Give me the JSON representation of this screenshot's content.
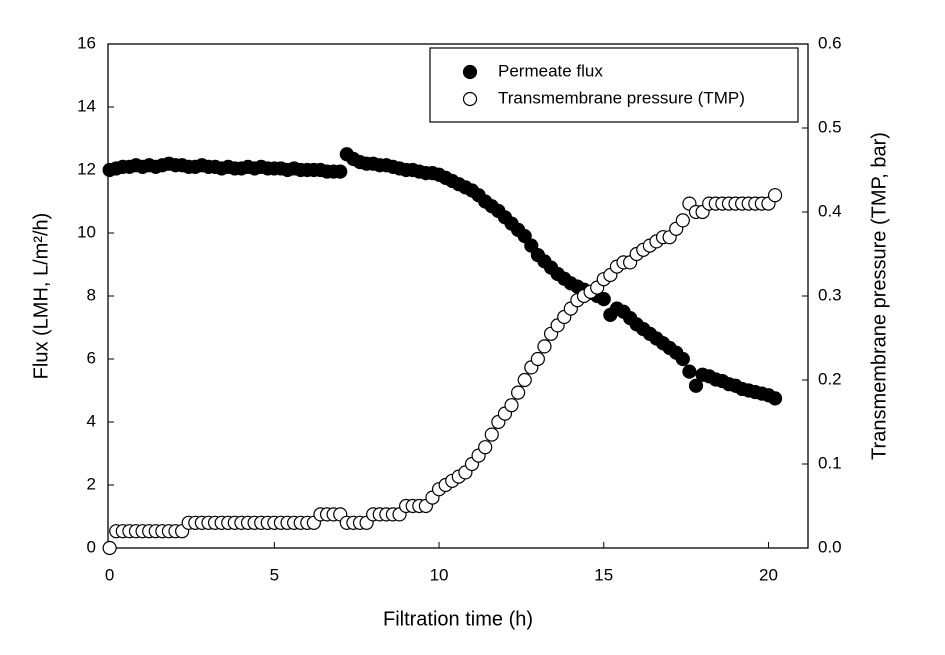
{
  "chart_data": {
    "type": "scatter",
    "x_label": "Filtration time (h)",
    "y_label": "Flux (LMH, L/m²/h)",
    "y2_label": "Transmembrane pressure (TMP, bar)",
    "x": [
      0,
      0.2,
      0.4,
      0.6,
      0.8,
      1,
      1.2,
      1.4,
      1.6,
      1.8,
      2,
      2.2,
      2.4,
      2.6,
      2.8,
      3,
      3.2,
      3.4,
      3.6,
      3.8,
      4,
      4.2,
      4.4,
      4.6,
      4.8,
      5,
      5.2,
      5.4,
      5.6,
      5.8,
      6,
      6.2,
      6.4,
      6.6,
      6.8,
      7,
      7.2,
      7.4,
      7.6,
      7.8,
      8,
      8.2,
      8.4,
      8.6,
      8.8,
      9,
      9.2,
      9.4,
      9.6,
      9.8,
      10,
      10.2,
      10.4,
      10.6,
      10.8,
      11,
      11.2,
      11.4,
      11.6,
      11.8,
      12,
      12.2,
      12.4,
      12.6,
      12.8,
      13,
      13.2,
      13.4,
      13.6,
      13.8,
      14,
      14.2,
      14.4,
      14.6,
      14.8,
      15,
      15.2,
      15.4,
      15.6,
      15.8,
      16,
      16.2,
      16.4,
      16.6,
      16.8,
      17,
      17.2,
      17.4,
      17.6,
      17.8,
      18,
      18.2,
      18.4,
      18.6,
      18.8,
      19,
      19.2,
      19.4,
      19.6,
      19.8,
      20,
      20.2
    ],
    "series": [
      {
        "name": "Permeate flux",
        "color": "#000000",
        "filled": true,
        "axis": "y",
        "values": [
          12.0,
          12.05,
          12.1,
          12.1,
          12.15,
          12.1,
          12.15,
          12.1,
          12.15,
          12.2,
          12.15,
          12.15,
          12.1,
          12.1,
          12.15,
          12.1,
          12.1,
          12.05,
          12.1,
          12.05,
          12.05,
          12.1,
          12.05,
          12.1,
          12.05,
          12.05,
          12.05,
          12.0,
          12.05,
          12.0,
          12.0,
          12.0,
          12.0,
          11.95,
          11.95,
          11.95,
          12.5,
          12.35,
          12.25,
          12.2,
          12.2,
          12.15,
          12.15,
          12.1,
          12.05,
          12.0,
          12.0,
          11.95,
          11.9,
          11.9,
          11.85,
          11.75,
          11.65,
          11.55,
          11.45,
          11.35,
          11.2,
          11.0,
          10.85,
          10.7,
          10.5,
          10.3,
          10.1,
          9.9,
          9.6,
          9.3,
          9.1,
          8.9,
          8.7,
          8.55,
          8.4,
          8.3,
          8.2,
          8.1,
          8.0,
          7.9,
          7.4,
          7.6,
          7.5,
          7.3,
          7.1,
          6.95,
          6.8,
          6.65,
          6.5,
          6.35,
          6.2,
          6.0,
          5.6,
          5.15,
          5.5,
          5.45,
          5.35,
          5.3,
          5.2,
          5.15,
          5.05,
          5.0,
          4.95,
          4.9,
          4.85,
          4.75
        ]
      },
      {
        "name": "Transmembrane pressure (TMP)",
        "color": "#000000",
        "filled": false,
        "axis": "y2",
        "values": [
          0.0,
          0.02,
          0.02,
          0.02,
          0.02,
          0.02,
          0.02,
          0.02,
          0.02,
          0.02,
          0.02,
          0.02,
          0.03,
          0.03,
          0.03,
          0.03,
          0.03,
          0.03,
          0.03,
          0.03,
          0.03,
          0.03,
          0.03,
          0.03,
          0.03,
          0.03,
          0.03,
          0.03,
          0.03,
          0.03,
          0.03,
          0.03,
          0.04,
          0.04,
          0.04,
          0.04,
          0.03,
          0.03,
          0.03,
          0.03,
          0.04,
          0.04,
          0.04,
          0.04,
          0.04,
          0.05,
          0.05,
          0.05,
          0.05,
          0.06,
          0.07,
          0.075,
          0.08,
          0.085,
          0.09,
          0.1,
          0.11,
          0.12,
          0.135,
          0.15,
          0.16,
          0.17,
          0.185,
          0.2,
          0.215,
          0.225,
          0.24,
          0.255,
          0.265,
          0.275,
          0.285,
          0.295,
          0.3,
          0.305,
          0.31,
          0.32,
          0.325,
          0.335,
          0.34,
          0.34,
          0.35,
          0.355,
          0.36,
          0.365,
          0.37,
          0.37,
          0.38,
          0.39,
          0.41,
          0.4,
          0.4,
          0.41,
          0.41,
          0.41,
          0.41,
          0.41,
          0.41,
          0.41,
          0.41,
          0.41,
          0.41,
          0.42
        ]
      }
    ],
    "xlim": [
      -0.05,
      21.2
    ],
    "xticks": [
      0,
      5,
      10,
      15,
      20
    ],
    "ylim": [
      0,
      16
    ],
    "yticks": [
      0,
      2,
      4,
      6,
      8,
      10,
      12,
      14,
      16
    ],
    "y2lim": [
      0,
      0.6
    ],
    "y2ticks": [
      {
        "value": 0,
        "label": "0.0"
      },
      0.1,
      0.2,
      0.3,
      0.4,
      0.5,
      0.6
    ],
    "legend": "upper right"
  }
}
